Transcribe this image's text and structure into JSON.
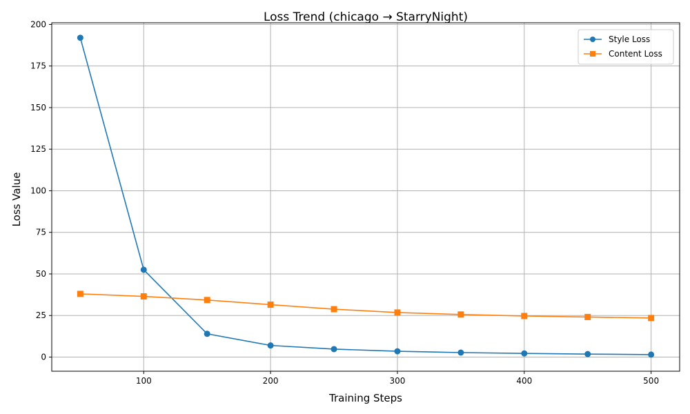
{
  "chart_data": {
    "type": "line",
    "title": "Loss Trend (chicago → StarryNight)",
    "xlabel": "Training Steps",
    "ylabel": "Loss Value",
    "xlim": [
      27.5,
      522.5
    ],
    "ylim": [
      -8.5,
      201
    ],
    "xticks": [
      100,
      200,
      300,
      400,
      500
    ],
    "yticks": [
      0,
      25,
      50,
      75,
      100,
      125,
      150,
      175,
      200
    ],
    "grid": true,
    "legend_position": "top-right",
    "x": [
      50,
      100,
      150,
      200,
      250,
      300,
      350,
      400,
      450,
      500
    ],
    "series": [
      {
        "name": "Style Loss",
        "color": "#1f77b4",
        "marker": "circle",
        "values": [
          192,
          52.5,
          14,
          7,
          4.8,
          3.5,
          2.7,
          2.2,
          1.8,
          1.5
        ]
      },
      {
        "name": "Content Loss",
        "color": "#ff7f0e",
        "marker": "square",
        "values": [
          38,
          36.5,
          34.3,
          31.5,
          28.8,
          26.8,
          25.6,
          24.7,
          24.1,
          23.5
        ]
      }
    ]
  }
}
